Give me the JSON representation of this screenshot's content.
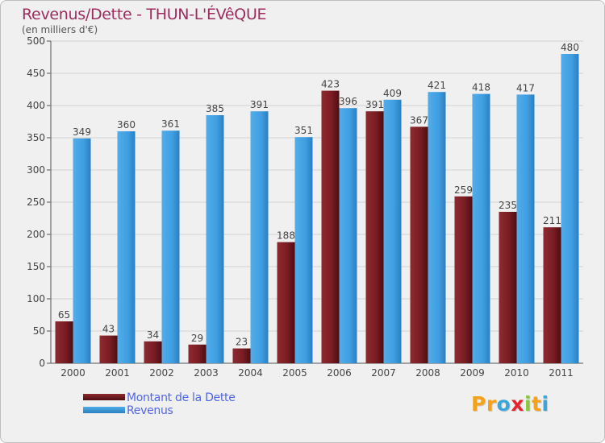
{
  "title": "Revenus/Dette - THUN-L'ÉVêQUE",
  "subtitle": "(en milliers d'€)",
  "logo": {
    "text": "Proxiti",
    "letters": [
      "P",
      "r",
      "o",
      "x",
      "i",
      "t",
      "i"
    ],
    "colors": [
      "#f5a21b",
      "#f5a21b",
      "#3ba7d9",
      "#e3262d",
      "#8cc63f",
      "#f5a21b",
      "#3ba7d9"
    ]
  },
  "colors": {
    "dette": "#7a1e24",
    "revenus": "#3f9ee2",
    "title": "#9c2d5f",
    "legend_text": "#5066e8"
  },
  "legend": {
    "dette_label": "Montant de la Dette",
    "revenus_label": "Revenus"
  },
  "chart_data": {
    "type": "bar",
    "title": "Revenus/Dette - THUN-L'ÉVêQUE",
    "ylabel": "(en milliers d'€)",
    "xlabel": "",
    "categories": [
      "2000",
      "2001",
      "2002",
      "2003",
      "2004",
      "2005",
      "2006",
      "2007",
      "2008",
      "2009",
      "2010",
      "2011"
    ],
    "series": [
      {
        "name": "Montant de la Dette",
        "values": [
          65,
          43,
          34,
          29,
          23,
          188,
          423,
          391,
          367,
          259,
          235,
          211
        ]
      },
      {
        "name": "Revenus",
        "values": [
          349,
          360,
          361,
          385,
          391,
          351,
          396,
          409,
          421,
          418,
          417,
          480
        ]
      }
    ],
    "ylim": [
      0,
      500
    ],
    "yticks": [
      0,
      50,
      100,
      150,
      200,
      250,
      300,
      350,
      400,
      450,
      500
    ],
    "grid": true,
    "legend_position": "bottom-left"
  }
}
